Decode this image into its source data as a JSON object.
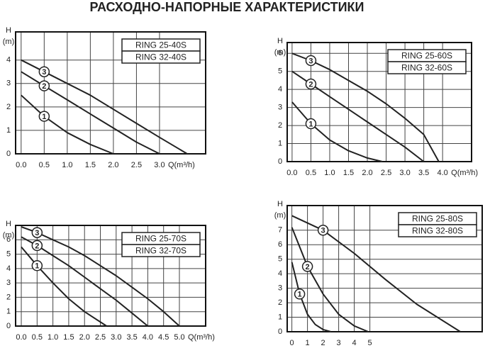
{
  "title": "РАСХОДНО-НАПОРНЫЕ ХАРАКТЕРИСТИКИ",
  "chart_data": [
    {
      "type": "line",
      "models": [
        "RING 25-40S",
        "RING 32-40S"
      ],
      "ylabel": "H",
      "yunit": "(m)",
      "xlabel": "Q(m³/h)",
      "xlim": [
        -0.12,
        4.0
      ],
      "ylim": [
        0,
        5.2
      ],
      "xticks": [
        {
          "value": 0,
          "label": "0.0"
        },
        0.5,
        {
          "value": 1,
          "label": "1.0"
        },
        1.5,
        {
          "value": 2,
          "label": "2.0"
        },
        2.5,
        {
          "value": 3,
          "label": "3.0"
        }
      ],
      "yticks": [
        0,
        1,
        2,
        3,
        4
      ],
      "grid": true,
      "series": [
        {
          "name": "1",
          "color": "#222222",
          "x": [
            0,
            0.5,
            1,
            1.5,
            2
          ],
          "values": [
            2.5,
            1.6,
            0.9,
            0.4,
            0
          ]
        },
        {
          "name": "2",
          "color": "#222222",
          "x": [
            0,
            0.5,
            1,
            1.5,
            2,
            2.5,
            3
          ],
          "values": [
            3.5,
            2.9,
            2.3,
            1.7,
            1.1,
            0.5,
            0
          ]
        },
        {
          "name": "3",
          "color": "#222222",
          "x": [
            0,
            0.5,
            1,
            1.5,
            2,
            2.5,
            3,
            3.6
          ],
          "values": [
            4.0,
            3.5,
            3.0,
            2.5,
            1.9,
            1.3,
            0.7,
            0
          ]
        }
      ]
    },
    {
      "type": "line",
      "models": [
        "RING 25-60S",
        "RING 32-60S"
      ],
      "ylabel": "H",
      "yunit": "(m)",
      "xlabel": "Q(m³/h)",
      "xlim": [
        -0.13,
        4.77
      ],
      "ylim": [
        0,
        6.6
      ],
      "xticks": [
        {
          "value": 0,
          "label": "0.0"
        },
        0.5,
        {
          "value": 1,
          "label": "1.0"
        },
        1.5,
        {
          "value": 2,
          "label": "2.0"
        },
        2.5,
        {
          "value": 3,
          "label": "3.0"
        },
        3.5,
        {
          "value": 4,
          "label": "4.0"
        }
      ],
      "yticks": [
        0,
        1,
        2,
        3,
        4,
        5,
        6
      ],
      "grid": true,
      "series": [
        {
          "name": "1",
          "color": "#222222",
          "x": [
            0,
            0.5,
            1,
            1.5,
            2,
            2.4
          ],
          "values": [
            3.3,
            2.1,
            1.2,
            0.6,
            0.2,
            0
          ]
        },
        {
          "name": "2",
          "color": "#222222",
          "x": [
            0,
            0.5,
            1,
            1.5,
            2,
            2.5,
            3,
            3.5
          ],
          "values": [
            5,
            4.3,
            3.6,
            2.9,
            2.2,
            1.5,
            0.8,
            0
          ]
        },
        {
          "name": "3",
          "color": "#222222",
          "x": [
            0,
            0.5,
            1,
            1.5,
            2,
            2.5,
            3,
            3.5,
            3.9
          ],
          "values": [
            6,
            5.6,
            5.1,
            4.5,
            3.9,
            3.2,
            2.4,
            1.5,
            0
          ]
        }
      ]
    },
    {
      "type": "line",
      "models": [
        "RING 25-70S",
        "RING 32-70S"
      ],
      "ylabel": "H",
      "yunit": "(m)",
      "xlabel": "Q(m³/h)",
      "xlim": [
        -0.18,
        5.83
      ],
      "ylim": [
        0,
        7.0
      ],
      "xticks": [
        {
          "value": 0,
          "label": "0.0"
        },
        0.5,
        {
          "value": 1,
          "label": "1.0"
        },
        1.5,
        {
          "value": 2,
          "label": "2.0"
        },
        2.5,
        {
          "value": 3,
          "label": "3.0"
        },
        3.5,
        {
          "value": 4,
          "label": "4.0"
        },
        4.5,
        {
          "value": 5,
          "label": "5.0"
        }
      ],
      "yticks": [
        0,
        1,
        2,
        3,
        4,
        5,
        6
      ],
      "grid": true,
      "series": [
        {
          "name": "1",
          "color": "#222222",
          "x": [
            0,
            0.5,
            1,
            1.5,
            2,
            2.7
          ],
          "values": [
            5.5,
            4.2,
            3,
            1.9,
            1,
            0
          ]
        },
        {
          "name": "2",
          "color": "#222222",
          "x": [
            0,
            0.5,
            1,
            1.5,
            2,
            2.5,
            3,
            3.5,
            4
          ],
          "values": [
            6.2,
            5.6,
            4.9,
            4.2,
            3.4,
            2.6,
            1.8,
            0.9,
            0
          ]
        },
        {
          "name": "3",
          "color": "#222222",
          "x": [
            0,
            0.5,
            1,
            1.5,
            2,
            2.5,
            3,
            3.5,
            4,
            4.5,
            5
          ],
          "values": [
            6.9,
            6.5,
            6.0,
            5.5,
            4.9,
            4.2,
            3.5,
            2.7,
            1.9,
            1.0,
            0
          ]
        }
      ]
    },
    {
      "type": "line",
      "models": [
        "RING 25-80S",
        "RING 32-80S"
      ],
      "ylabel": "H",
      "yunit": "(m)",
      "xlim": [
        -0.3,
        12.2
      ],
      "ylim": [
        0,
        8.7
      ],
      "xticks": [
        0,
        1,
        2,
        3,
        4,
        5
      ],
      "yticks": [
        0,
        1,
        2,
        3,
        4,
        5,
        6,
        7
      ],
      "grid": true,
      "series": [
        {
          "name": "1",
          "color": "#222222",
          "x": [
            0,
            0.5,
            1,
            1.5,
            2,
            2.5
          ],
          "values": [
            4.8,
            2.6,
            1.2,
            0.5,
            0.15,
            0
          ]
        },
        {
          "name": "2",
          "color": "#222222",
          "x": [
            0,
            1,
            2,
            3,
            4,
            4.9
          ],
          "values": [
            7.2,
            4.5,
            2.6,
            1.2,
            0.4,
            0
          ]
        },
        {
          "name": "3",
          "color": "#222222",
          "x": [
            0,
            2,
            4,
            6,
            8,
            10.8
          ],
          "values": [
            8,
            7,
            5.4,
            3.6,
            1.9,
            0
          ]
        }
      ]
    }
  ]
}
